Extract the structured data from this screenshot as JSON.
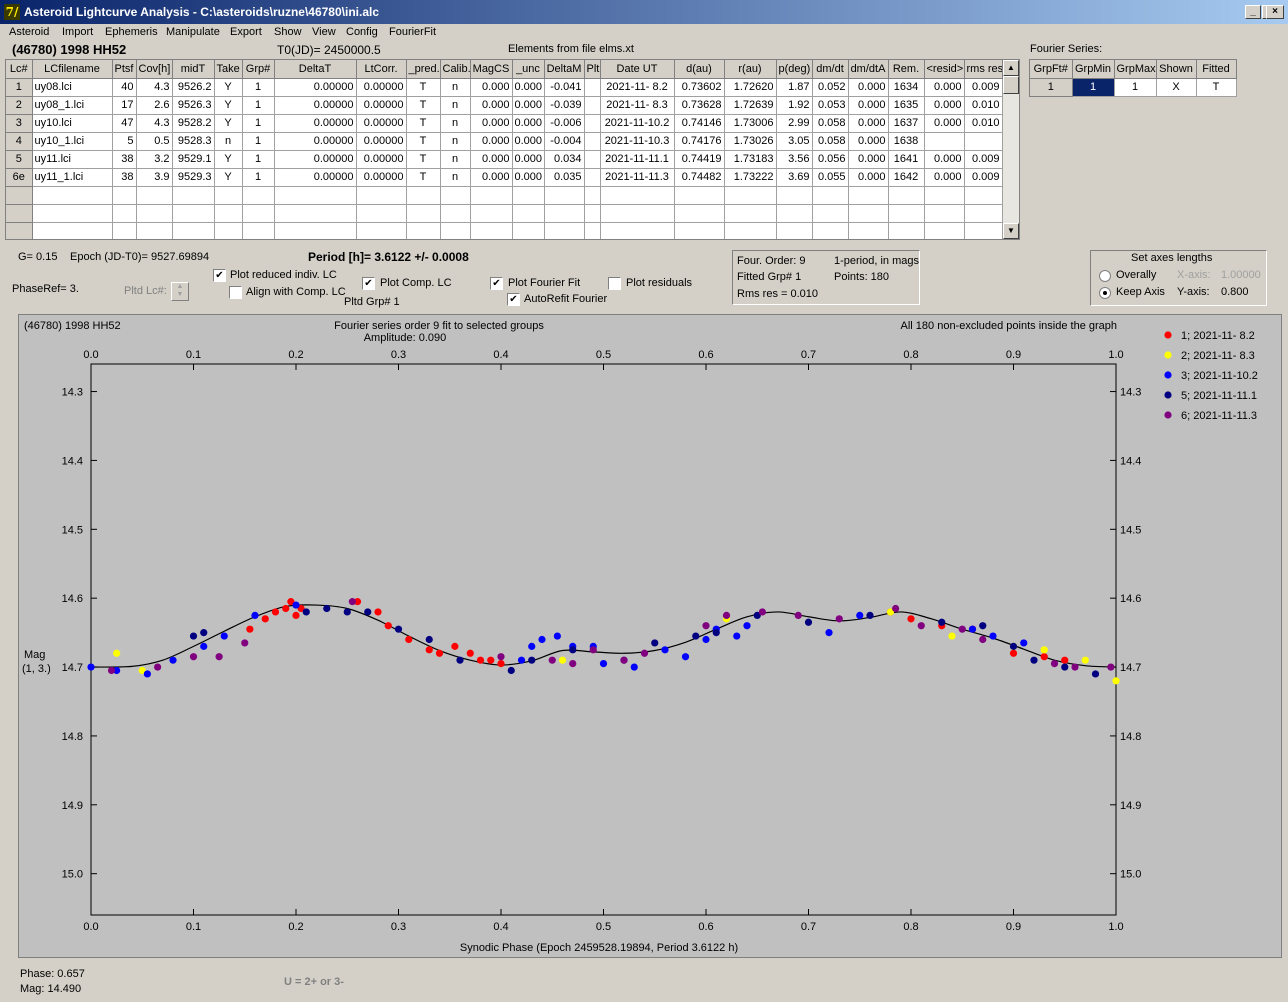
{
  "window": {
    "title": "Asteroid Lightcurve Analysis - C:\\asteroids\\ruzne\\46780\\ini.alc",
    "icon_glyph": "7/",
    "buttons": [
      "_",
      "□",
      "×"
    ]
  },
  "menu": [
    "Asteroid",
    "Import",
    "Ephemeris",
    "Manipulate",
    "Export",
    "Show",
    "View",
    "Config",
    "FourierFit"
  ],
  "header": {
    "object": "(46780) 1998 HH52",
    "t0": "T0(JD)= 2450000.5",
    "elements": "Elements from file elms.xt"
  },
  "table": {
    "columns": [
      "Lc#",
      "LCfilename",
      "Ptsf",
      "Cov[h]",
      "midT",
      "Take",
      "Grp#",
      "DeltaT",
      "LtCorr.",
      "_pred.",
      "Calib.",
      "MagCS",
      "_unc",
      "DeltaM",
      "Plt",
      "Date UT",
      "d(au)",
      "r(au)",
      "p(deg)",
      "dm/dt",
      "dm/dtA",
      "Rem.",
      "<resid>",
      "rms res"
    ],
    "rows": [
      [
        "1",
        "uy08.lci",
        "40",
        "4.3",
        "9526.2",
        "Y",
        "1",
        "0.00000",
        "0.00000",
        "T",
        "n",
        "0.000",
        "0.000",
        "-0.041",
        "",
        "2021-11- 8.2",
        "0.73602",
        "1.72620",
        "1.87",
        "0.052",
        "0.000",
        "1634",
        "0.000",
        "0.009"
      ],
      [
        "2",
        "uy08_1.lci",
        "17",
        "2.6",
        "9526.3",
        "Y",
        "1",
        "0.00000",
        "0.00000",
        "T",
        "n",
        "0.000",
        "0.000",
        "-0.039",
        "",
        "2021-11- 8.3",
        "0.73628",
        "1.72639",
        "1.92",
        "0.053",
        "0.000",
        "1635",
        "0.000",
        "0.010"
      ],
      [
        "3",
        "uy10.lci",
        "47",
        "4.3",
        "9528.2",
        "Y",
        "1",
        "0.00000",
        "0.00000",
        "T",
        "n",
        "0.000",
        "0.000",
        "-0.006",
        "",
        "2021-11-10.2",
        "0.74146",
        "1.73006",
        "2.99",
        "0.058",
        "0.000",
        "1637",
        "0.000",
        "0.010"
      ],
      [
        "4",
        "uy10_1.lci",
        "5",
        "0.5",
        "9528.3",
        "n",
        "1",
        "0.00000",
        "0.00000",
        "T",
        "n",
        "0.000",
        "0.000",
        "-0.004",
        "",
        "2021-11-10.3",
        "0.74176",
        "1.73026",
        "3.05",
        "0.058",
        "0.000",
        "1638",
        "",
        ""
      ],
      [
        "5",
        "uy11.lci",
        "38",
        "3.2",
        "9529.1",
        "Y",
        "1",
        "0.00000",
        "0.00000",
        "T",
        "n",
        "0.000",
        "0.000",
        "0.034",
        "",
        "2021-11-11.1",
        "0.74419",
        "1.73183",
        "3.56",
        "0.056",
        "0.000",
        "1641",
        "0.000",
        "0.009"
      ],
      [
        "6e",
        "uy11_1.lci",
        "38",
        "3.9",
        "9529.3",
        "Y",
        "1",
        "0.00000",
        "0.00000",
        "T",
        "n",
        "0.000",
        "0.000",
        "0.035",
        "",
        "2021-11-11.3",
        "0.74482",
        "1.73222",
        "3.69",
        "0.055",
        "0.000",
        "1642",
        "0.000",
        "0.009"
      ]
    ],
    "empty_rows": 3
  },
  "fourier_series": {
    "label": "Fourier Series:",
    "columns": [
      "GrpFt#",
      "GrpMin",
      "GrpMax",
      "Shown",
      "Fitted"
    ],
    "row": [
      "1",
      "1",
      "1",
      "X",
      "T"
    ]
  },
  "info": {
    "g": "G= 0.15",
    "epoch": "Epoch (JD-T0)= 9527.69894",
    "period": "Period [h]= 3.6122 +/- 0.0008",
    "phaseref": "PhaseRef= 3.",
    "pltd_lc": "Pltd Lc#:",
    "pltd_grp": "Pltd Grp#  1",
    "four_order": "Four. Order:  9",
    "one_period": "1-period, in mags",
    "fitted_grp": "Fitted Grp# 1",
    "points": "Points: 180",
    "rms_res": "Rms res     = 0.010"
  },
  "checkboxes": {
    "plot_reduced": {
      "label": "Plot reduced indiv. LC",
      "checked": true
    },
    "align_comp": {
      "label": "Align with Comp. LC",
      "checked": false
    },
    "plot_comp": {
      "label": "Plot Comp. LC",
      "checked": true
    },
    "plot_fourier": {
      "label": "Plot Fourier Fit",
      "checked": true
    },
    "autorefit": {
      "label": "AutoRefit Fourier",
      "checked": true
    },
    "plot_resid": {
      "label": "Plot residuals",
      "checked": false
    }
  },
  "axes_group": {
    "title": "Set axes lengths",
    "overall": "Overally",
    "keep": "Keep Axis",
    "selected": "keep",
    "x_label": "X-axis:",
    "x_value": "1.00000",
    "y_label": "Y-axis:",
    "y_value": "0.800"
  },
  "plot": {
    "object": "(46780) 1998 HH52",
    "subtitle1": "Fourier series order 9 fit to selected groups",
    "subtitle2": "Amplitude: 0.090",
    "note": "All 180 non-excluded points inside the graph",
    "ylabel1": "Mag",
    "ylabel2": "(1, 3.)",
    "xlabel": "Synodic Phase (Epoch 2459528.19894, Period 3.6122 h)"
  },
  "chart_data": {
    "type": "scatter",
    "xlim": [
      0,
      1
    ],
    "ylim": [
      15.06,
      14.26
    ],
    "y_reversed": true,
    "x_ticks": [
      "0.0",
      "0.1",
      "0.2",
      "0.3",
      "0.4",
      "0.5",
      "0.6",
      "0.7",
      "0.8",
      "0.9",
      "1.0"
    ],
    "y_ticks": [
      "14.3",
      "14.4",
      "14.5",
      "14.6",
      "14.7",
      "14.8",
      "14.9",
      "15.0"
    ],
    "grid": false,
    "legend_position": "right",
    "fit_curve": {
      "x": [
        0.0,
        0.04,
        0.07,
        0.1,
        0.13,
        0.16,
        0.19,
        0.22,
        0.25,
        0.28,
        0.31,
        0.34,
        0.37,
        0.4,
        0.43,
        0.46,
        0.49,
        0.52,
        0.55,
        0.58,
        0.61,
        0.64,
        0.67,
        0.7,
        0.73,
        0.76,
        0.79,
        0.82,
        0.85,
        0.88,
        0.91,
        0.94,
        0.97,
        1.0
      ],
      "y": [
        14.7,
        14.699,
        14.69,
        14.67,
        14.648,
        14.627,
        14.612,
        14.61,
        14.615,
        14.632,
        14.655,
        14.676,
        14.69,
        14.697,
        14.691,
        14.676,
        14.678,
        14.68,
        14.676,
        14.664,
        14.645,
        14.627,
        14.62,
        14.627,
        14.633,
        14.628,
        14.62,
        14.63,
        14.645,
        14.658,
        14.674,
        14.69,
        14.698,
        14.7
      ]
    },
    "series": [
      {
        "name": "1; 2021-11- 8.2",
        "color": "#ff0000",
        "x": [
          0.155,
          0.17,
          0.18,
          0.19,
          0.195,
          0.2,
          0.205,
          0.26,
          0.28,
          0.29,
          0.31,
          0.33,
          0.34,
          0.355,
          0.37,
          0.38,
          0.39,
          0.4,
          0.78,
          0.8,
          0.83,
          0.86,
          0.9,
          0.93,
          0.95
        ],
        "y": [
          14.645,
          14.63,
          14.62,
          14.615,
          14.605,
          14.625,
          14.615,
          14.605,
          14.62,
          14.64,
          14.66,
          14.675,
          14.68,
          14.67,
          14.68,
          14.69,
          14.69,
          14.695,
          14.62,
          14.63,
          14.64,
          14.645,
          14.68,
          14.685,
          14.69
        ]
      },
      {
        "name": "2; 2021-11- 8.3",
        "color": "#ffff00",
        "x": [
          0.025,
          0.05,
          0.08,
          0.46,
          0.62,
          0.78,
          0.84,
          0.9,
          0.93,
          0.97,
          1.0
        ],
        "y": [
          14.68,
          14.705,
          14.69,
          14.69,
          14.63,
          14.62,
          14.655,
          14.67,
          14.675,
          14.69,
          14.72
        ]
      },
      {
        "name": "3; 2021-11-10.2",
        "color": "#0000ff",
        "x": [
          0.0,
          0.025,
          0.055,
          0.08,
          0.11,
          0.13,
          0.16,
          0.2,
          0.42,
          0.43,
          0.44,
          0.455,
          0.47,
          0.49,
          0.5,
          0.53,
          0.56,
          0.58,
          0.6,
          0.61,
          0.63,
          0.64,
          0.72,
          0.75,
          0.86,
          0.88,
          0.91
        ],
        "y": [
          14.7,
          14.705,
          14.71,
          14.69,
          14.67,
          14.655,
          14.625,
          14.61,
          14.69,
          14.67,
          14.66,
          14.655,
          14.67,
          14.67,
          14.695,
          14.7,
          14.675,
          14.685,
          14.66,
          14.645,
          14.655,
          14.64,
          14.65,
          14.625,
          14.645,
          14.655,
          14.665
        ]
      },
      {
        "name": "5; 2021-11-11.1",
        "color": "#000080",
        "x": [
          0.1,
          0.11,
          0.21,
          0.23,
          0.25,
          0.27,
          0.3,
          0.33,
          0.36,
          0.41,
          0.43,
          0.47,
          0.52,
          0.55,
          0.59,
          0.61,
          0.65,
          0.7,
          0.76,
          0.83,
          0.87,
          0.9,
          0.92,
          0.95,
          0.98
        ],
        "y": [
          14.655,
          14.65,
          14.62,
          14.615,
          14.62,
          14.62,
          14.645,
          14.66,
          14.69,
          14.705,
          14.69,
          14.675,
          14.69,
          14.665,
          14.655,
          14.65,
          14.625,
          14.635,
          14.625,
          14.635,
          14.64,
          14.67,
          14.69,
          14.7,
          14.71
        ]
      },
      {
        "name": "6; 2021-11-11.3",
        "color": "#800080",
        "x": [
          0.02,
          0.065,
          0.1,
          0.125,
          0.15,
          0.255,
          0.4,
          0.45,
          0.47,
          0.49,
          0.52,
          0.54,
          0.6,
          0.62,
          0.655,
          0.69,
          0.73,
          0.785,
          0.81,
          0.85,
          0.87,
          0.94,
          0.96,
          0.995
        ],
        "y": [
          14.705,
          14.7,
          14.685,
          14.685,
          14.665,
          14.605,
          14.685,
          14.69,
          14.695,
          14.675,
          14.69,
          14.68,
          14.64,
          14.625,
          14.62,
          14.625,
          14.63,
          14.615,
          14.64,
          14.645,
          14.66,
          14.695,
          14.7,
          14.7
        ]
      }
    ]
  },
  "status": {
    "phase": "Phase:  0.657",
    "mag": "Mag:    14.490",
    "hint": "U = 2+ or 3-"
  }
}
